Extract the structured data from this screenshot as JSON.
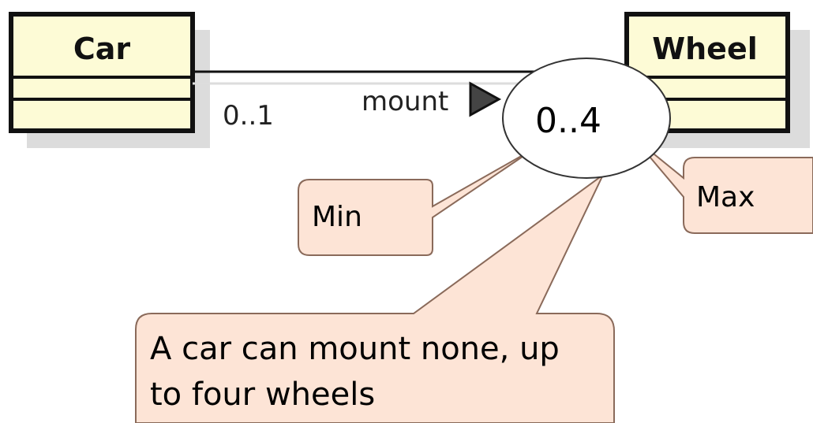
{
  "diagram": {
    "type": "uml-class-association",
    "classes": [
      {
        "name": "Car"
      },
      {
        "name": "Wheel"
      }
    ],
    "association": {
      "name": "mount",
      "source_multiplicity": "0..1",
      "target_multiplicity": "0..4"
    },
    "callouts": {
      "min": "Min",
      "max": "Max",
      "explanation_line1": "A car can mount none, up",
      "explanation_line2": "to four wheels"
    }
  },
  "colors": {
    "class_fill": "#fdfbd6",
    "class_stroke": "#111111",
    "class_shadow": "#d8d8d8",
    "callout_fill": "#fde4d6",
    "callout_stroke": "#8a6a5a",
    "ellipse_fill": "#ffffff"
  }
}
